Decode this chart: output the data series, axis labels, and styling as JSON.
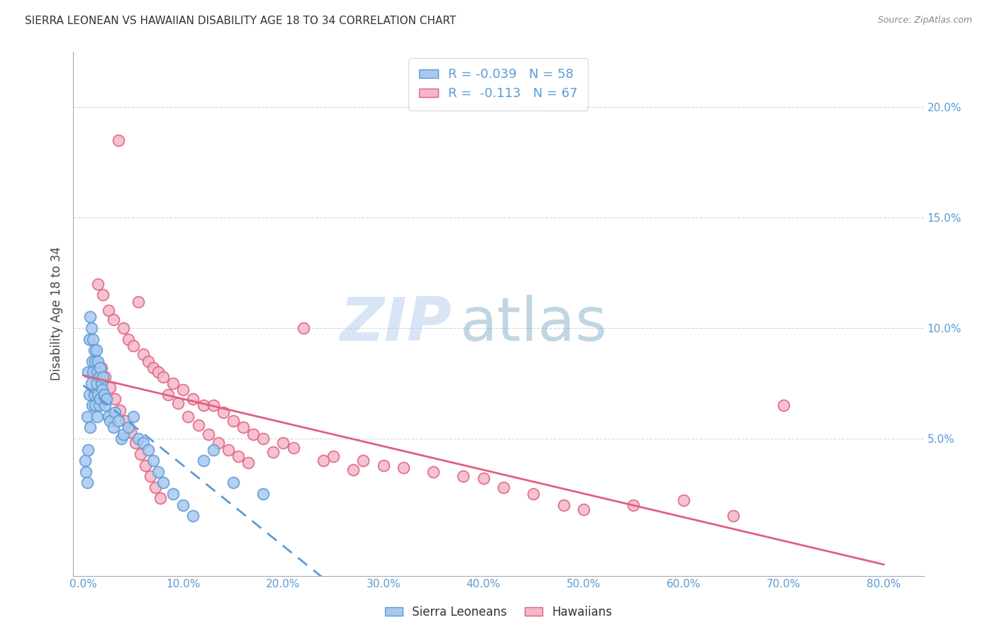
{
  "title": "SIERRA LEONEAN VS HAWAIIAN DISABILITY AGE 18 TO 34 CORRELATION CHART",
  "source": "Source: ZipAtlas.com",
  "ylabel": "Disability Age 18 to 34",
  "ytick_labels": [
    "5.0%",
    "10.0%",
    "15.0%",
    "20.0%"
  ],
  "ytick_values": [
    0.05,
    0.1,
    0.15,
    0.2
  ],
  "xtick_labels": [
    "0.0%",
    "10.0%",
    "20.0%",
    "30.0%",
    "40.0%",
    "50.0%",
    "60.0%",
    "70.0%",
    "80.0%"
  ],
  "xtick_values": [
    0.0,
    0.1,
    0.2,
    0.3,
    0.4,
    0.5,
    0.6,
    0.7,
    0.8
  ],
  "xlim": [
    -0.01,
    0.84
  ],
  "ylim": [
    -0.012,
    0.225
  ],
  "sl_color": "#a8c8f0",
  "sl_edge_color": "#5b9bd5",
  "hw_color": "#f4b8c8",
  "hw_edge_color": "#e0607e",
  "trend_sl_color": "#5b9bd5",
  "trend_hw_color": "#e0607e",
  "legend_R_sl": "-0.039",
  "legend_N_sl": "58",
  "legend_R_hw": "-0.113",
  "legend_N_hw": "67",
  "watermark": "ZIPatlas",
  "background_color": "#ffffff",
  "grid_color": "#cccccc",
  "title_color": "#333333",
  "axis_label_color": "#5b9bd5",
  "sl_x": [
    0.002,
    0.003,
    0.004,
    0.004,
    0.005,
    0.005,
    0.006,
    0.006,
    0.007,
    0.007,
    0.008,
    0.008,
    0.009,
    0.009,
    0.01,
    0.01,
    0.011,
    0.011,
    0.012,
    0.012,
    0.013,
    0.013,
    0.014,
    0.014,
    0.015,
    0.015,
    0.016,
    0.016,
    0.017,
    0.017,
    0.018,
    0.019,
    0.02,
    0.021,
    0.022,
    0.023,
    0.025,
    0.027,
    0.03,
    0.032,
    0.035,
    0.038,
    0.04,
    0.045,
    0.05,
    0.055,
    0.06,
    0.065,
    0.07,
    0.075,
    0.08,
    0.09,
    0.1,
    0.11,
    0.12,
    0.13,
    0.15,
    0.18
  ],
  "sl_y": [
    0.04,
    0.035,
    0.06,
    0.03,
    0.08,
    0.045,
    0.095,
    0.07,
    0.105,
    0.055,
    0.1,
    0.075,
    0.085,
    0.065,
    0.095,
    0.08,
    0.09,
    0.07,
    0.085,
    0.065,
    0.09,
    0.075,
    0.08,
    0.06,
    0.085,
    0.07,
    0.078,
    0.065,
    0.082,
    0.068,
    0.075,
    0.072,
    0.078,
    0.07,
    0.065,
    0.068,
    0.06,
    0.058,
    0.055,
    0.062,
    0.058,
    0.05,
    0.052,
    0.055,
    0.06,
    0.05,
    0.048,
    0.045,
    0.04,
    0.035,
    0.03,
    0.025,
    0.02,
    0.015,
    0.04,
    0.045,
    0.03,
    0.025
  ],
  "hw_x": [
    0.015,
    0.02,
    0.025,
    0.03,
    0.035,
    0.04,
    0.045,
    0.05,
    0.055,
    0.06,
    0.065,
    0.07,
    0.075,
    0.08,
    0.09,
    0.1,
    0.11,
    0.12,
    0.13,
    0.14,
    0.15,
    0.16,
    0.17,
    0.18,
    0.2,
    0.22,
    0.25,
    0.28,
    0.3,
    0.32,
    0.35,
    0.38,
    0.4,
    0.42,
    0.45,
    0.48,
    0.5,
    0.55,
    0.6,
    0.65,
    0.7,
    0.018,
    0.022,
    0.027,
    0.032,
    0.037,
    0.042,
    0.047,
    0.052,
    0.057,
    0.062,
    0.067,
    0.072,
    0.077,
    0.085,
    0.095,
    0.105,
    0.115,
    0.125,
    0.135,
    0.145,
    0.155,
    0.165,
    0.19,
    0.21,
    0.24,
    0.27
  ],
  "hw_y": [
    0.12,
    0.115,
    0.108,
    0.104,
    0.185,
    0.1,
    0.095,
    0.092,
    0.112,
    0.088,
    0.085,
    0.082,
    0.08,
    0.078,
    0.075,
    0.072,
    0.068,
    0.065,
    0.065,
    0.062,
    0.058,
    0.055,
    0.052,
    0.05,
    0.048,
    0.1,
    0.042,
    0.04,
    0.038,
    0.037,
    0.035,
    0.033,
    0.032,
    0.028,
    0.025,
    0.02,
    0.018,
    0.02,
    0.022,
    0.015,
    0.065,
    0.082,
    0.078,
    0.073,
    0.068,
    0.063,
    0.058,
    0.053,
    0.048,
    0.043,
    0.038,
    0.033,
    0.028,
    0.023,
    0.07,
    0.066,
    0.06,
    0.056,
    0.052,
    0.048,
    0.045,
    0.042,
    0.039,
    0.044,
    0.046,
    0.04,
    0.036
  ]
}
